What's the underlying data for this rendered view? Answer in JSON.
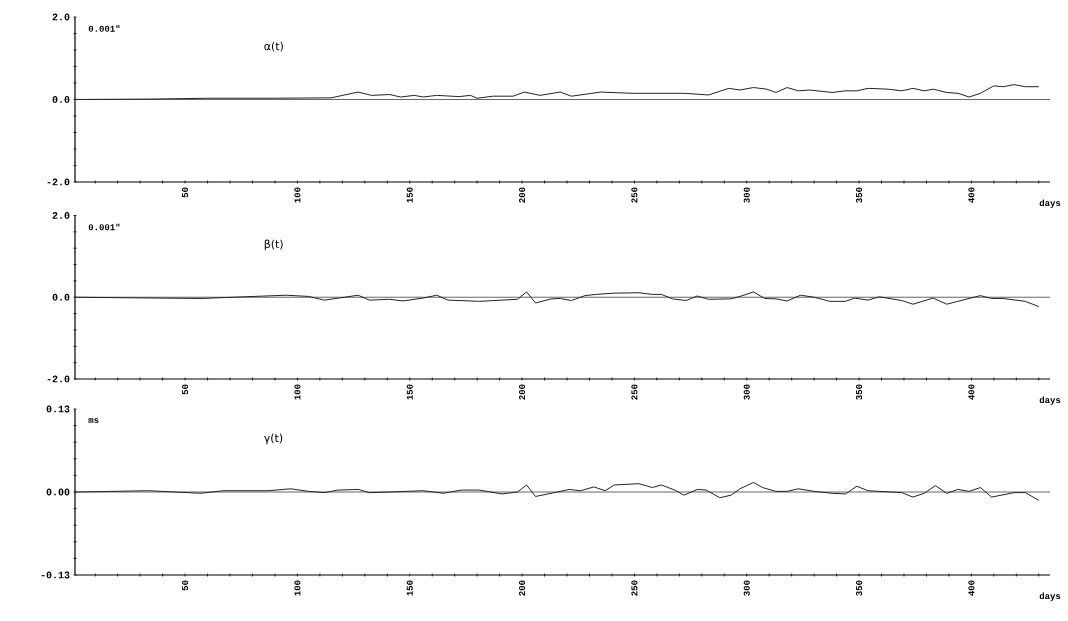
{
  "chart_data": [
    {
      "type": "line",
      "xlabel": "days",
      "ylabel": "0.001\"",
      "xlim": [
        1,
        435
      ],
      "ylim": [
        -2,
        2
      ],
      "xticks": [
        {
          "value": 10,
          "label": null
        },
        {
          "value": 20,
          "label": null
        },
        {
          "value": 30,
          "label": null
        },
        {
          "value": 40,
          "label": null
        },
        50,
        {
          "value": 60,
          "label": null
        },
        {
          "value": 70,
          "label": null
        },
        {
          "value": 80,
          "label": null
        },
        {
          "value": 90,
          "label": null
        },
        100,
        {
          "value": 110,
          "label": null
        },
        {
          "value": 120,
          "label": null
        },
        {
          "value": 130,
          "label": null
        },
        {
          "value": 140,
          "label": null
        },
        150,
        {
          "value": 160,
          "label": null
        },
        {
          "value": 170,
          "label": null
        },
        {
          "value": 180,
          "label": null
        },
        {
          "value": 190,
          "label": null
        },
        200,
        {
          "value": 210,
          "label": null
        },
        {
          "value": 220,
          "label": null
        },
        {
          "value": 230,
          "label": null
        },
        {
          "value": 240,
          "label": null
        },
        250,
        {
          "value": 260,
          "label": null
        },
        {
          "value": 270,
          "label": null
        },
        {
          "value": 280,
          "label": null
        },
        {
          "value": 290,
          "label": null
        },
        300,
        {
          "value": 310,
          "label": null
        },
        {
          "value": 320,
          "label": null
        },
        {
          "value": 330,
          "label": null
        },
        {
          "value": 340,
          "label": null
        },
        350,
        {
          "value": 360,
          "label": null
        },
        {
          "value": 370,
          "label": null
        },
        {
          "value": 380,
          "label": null
        },
        {
          "value": 390,
          "label": null
        },
        400,
        {
          "value": 410,
          "label": null
        },
        {
          "value": 420,
          "label": null
        },
        {
          "value": 430,
          "label": null
        }
      ],
      "yticks": [
        {
          "value": -2,
          "label": "-2.0"
        },
        {
          "value": -1.6,
          "label": null
        },
        {
          "value": -1.2,
          "label": null
        },
        {
          "value": -0.8,
          "label": null
        },
        {
          "value": -0.4,
          "label": null
        },
        {
          "value": 0,
          "label": "0.0"
        },
        {
          "value": 0.4,
          "label": null
        },
        {
          "value": 0.8,
          "label": null
        },
        {
          "value": 1.2,
          "label": null
        },
        {
          "value": 1.6,
          "label": null
        },
        {
          "value": 2,
          "label": "2.0"
        }
      ],
      "ref_lines": [
        {
          "axis": "y",
          "value": 0,
          "color": "#222222"
        }
      ],
      "series": [
        {
          "name": "α(t)",
          "color": "#222222",
          "x": [
            1,
            34,
            60,
            87,
            115,
            127,
            133,
            141,
            146,
            152,
            156,
            162,
            172,
            177,
            180,
            187,
            196,
            201,
            208,
            217,
            222,
            235,
            249,
            272,
            283,
            292,
            297,
            303,
            309,
            313,
            318,
            323,
            328,
            338,
            344,
            349,
            354,
            363,
            369,
            374,
            379,
            383,
            389,
            394,
            399,
            404,
            410,
            414,
            419,
            424,
            430
          ],
          "values": [
            0,
            0.01,
            0.03,
            0.03,
            0.04,
            0.18,
            0.1,
            0.12,
            0.06,
            0.1,
            0.06,
            0.1,
            0.07,
            0.1,
            0.03,
            0.08,
            0.08,
            0.18,
            0.1,
            0.18,
            0.08,
            0.18,
            0.15,
            0.15,
            0.11,
            0.27,
            0.23,
            0.29,
            0.25,
            0.17,
            0.29,
            0.21,
            0.23,
            0.17,
            0.21,
            0.21,
            0.27,
            0.25,
            0.21,
            0.27,
            0.21,
            0.25,
            0.17,
            0.15,
            0.06,
            0.15,
            0.33,
            0.31,
            0.36,
            0.31,
            0.31
          ]
        }
      ]
    },
    {
      "type": "line",
      "xlabel": "days",
      "ylabel": "0.001\"",
      "xlim": [
        1,
        435
      ],
      "ylim": [
        -2,
        2
      ],
      "xticks": [
        {
          "value": 10,
          "label": null
        },
        {
          "value": 20,
          "label": null
        },
        {
          "value": 30,
          "label": null
        },
        {
          "value": 40,
          "label": null
        },
        50,
        {
          "value": 60,
          "label": null
        },
        {
          "value": 70,
          "label": null
        },
        {
          "value": 80,
          "label": null
        },
        {
          "value": 90,
          "label": null
        },
        100,
        {
          "value": 110,
          "label": null
        },
        {
          "value": 120,
          "label": null
        },
        {
          "value": 130,
          "label": null
        },
        {
          "value": 140,
          "label": null
        },
        150,
        {
          "value": 160,
          "label": null
        },
        {
          "value": 170,
          "label": null
        },
        {
          "value": 180,
          "label": null
        },
        {
          "value": 190,
          "label": null
        },
        200,
        {
          "value": 210,
          "label": null
        },
        {
          "value": 220,
          "label": null
        },
        {
          "value": 230,
          "label": null
        },
        {
          "value": 240,
          "label": null
        },
        250,
        {
          "value": 260,
          "label": null
        },
        {
          "value": 270,
          "label": null
        },
        {
          "value": 280,
          "label": null
        },
        {
          "value": 290,
          "label": null
        },
        300,
        {
          "value": 310,
          "label": null
        },
        {
          "value": 320,
          "label": null
        },
        {
          "value": 330,
          "label": null
        },
        {
          "value": 340,
          "label": null
        },
        350,
        {
          "value": 360,
          "label": null
        },
        {
          "value": 370,
          "label": null
        },
        {
          "value": 380,
          "label": null
        },
        {
          "value": 390,
          "label": null
        },
        400,
        {
          "value": 410,
          "label": null
        },
        {
          "value": 420,
          "label": null
        },
        {
          "value": 430,
          "label": null
        }
      ],
      "yticks": [
        {
          "value": -2,
          "label": "-2.0"
        },
        {
          "value": -1.6,
          "label": null
        },
        {
          "value": -1.2,
          "label": null
        },
        {
          "value": -0.8,
          "label": null
        },
        {
          "value": -0.4,
          "label": null
        },
        {
          "value": 0,
          "label": "0.0"
        },
        {
          "value": 0.4,
          "label": null
        },
        {
          "value": 0.8,
          "label": null
        },
        {
          "value": 1.2,
          "label": null
        },
        {
          "value": 1.6,
          "label": null
        },
        {
          "value": 2,
          "label": "2.0"
        }
      ],
      "ref_lines": [
        {
          "axis": "y",
          "value": 0,
          "color": "#222222"
        }
      ],
      "series": [
        {
          "name": "β(t)",
          "color": "#222222",
          "x": [
            1,
            57,
            95,
            105,
            112,
            121,
            127,
            132,
            141,
            147,
            156,
            162,
            167,
            181,
            198,
            202,
            206,
            213,
            217,
            222,
            228,
            233,
            241,
            252,
            258,
            262,
            267,
            273,
            278,
            283,
            293,
            297,
            303,
            308,
            313,
            318,
            324,
            330,
            337,
            344,
            348,
            354,
            359,
            369,
            374,
            383,
            389,
            394,
            404,
            409,
            414,
            424,
            430
          ],
          "values": [
            0,
            -0.03,
            0.05,
            0.02,
            -0.07,
            0,
            0.05,
            -0.07,
            -0.05,
            -0.09,
            -0.02,
            0.05,
            -0.07,
            -0.1,
            -0.05,
            0.13,
            -0.14,
            -0.04,
            -0.03,
            -0.08,
            0.04,
            0.07,
            0.1,
            0.11,
            0.07,
            0.07,
            -0.04,
            -0.08,
            0.03,
            -0.05,
            -0.04,
            0.02,
            0.13,
            -0.03,
            -0.04,
            -0.09,
            0.05,
            0,
            -0.1,
            -0.1,
            -0.02,
            -0.07,
            0.01,
            -0.08,
            -0.17,
            -0.02,
            -0.17,
            -0.1,
            0.04,
            -0.03,
            -0.03,
            -0.1,
            -0.23
          ]
        }
      ]
    },
    {
      "type": "line",
      "xlabel": "days",
      "ylabel": "ms",
      "xlim": [
        1,
        435
      ],
      "ylim": [
        -0.13,
        0.13
      ],
      "xticks": [
        {
          "value": 10,
          "label": null
        },
        {
          "value": 20,
          "label": null
        },
        {
          "value": 30,
          "label": null
        },
        {
          "value": 40,
          "label": null
        },
        50,
        {
          "value": 60,
          "label": null
        },
        {
          "value": 70,
          "label": null
        },
        {
          "value": 80,
          "label": null
        },
        {
          "value": 90,
          "label": null
        },
        100,
        {
          "value": 110,
          "label": null
        },
        {
          "value": 120,
          "label": null
        },
        {
          "value": 130,
          "label": null
        },
        {
          "value": 140,
          "label": null
        },
        150,
        {
          "value": 160,
          "label": null
        },
        {
          "value": 170,
          "label": null
        },
        {
          "value": 180,
          "label": null
        },
        {
          "value": 190,
          "label": null
        },
        200,
        {
          "value": 210,
          "label": null
        },
        {
          "value": 220,
          "label": null
        },
        {
          "value": 230,
          "label": null
        },
        {
          "value": 240,
          "label": null
        },
        250,
        {
          "value": 260,
          "label": null
        },
        {
          "value": 270,
          "label": null
        },
        {
          "value": 280,
          "label": null
        },
        {
          "value": 290,
          "label": null
        },
        300,
        {
          "value": 310,
          "label": null
        },
        {
          "value": 320,
          "label": null
        },
        {
          "value": 330,
          "label": null
        },
        {
          "value": 340,
          "label": null
        },
        350,
        {
          "value": 360,
          "label": null
        },
        {
          "value": 370,
          "label": null
        },
        {
          "value": 380,
          "label": null
        },
        {
          "value": 390,
          "label": null
        },
        400,
        {
          "value": 410,
          "label": null
        },
        {
          "value": 420,
          "label": null
        },
        {
          "value": 430,
          "label": null
        }
      ],
      "yticks": [
        -0.13,
        {
          "value": -0.104,
          "label": null
        },
        {
          "value": -0.078,
          "label": null
        },
        {
          "value": -0.052,
          "label": null
        },
        {
          "value": -0.026,
          "label": null
        },
        {
          "value": 0,
          "label": "0.00"
        },
        {
          "value": 0.026,
          "label": null
        },
        {
          "value": 0.052,
          "label": null
        },
        {
          "value": 0.078,
          "label": null
        },
        {
          "value": 0.104,
          "label": null
        },
        0.13
      ],
      "ref_lines": [
        {
          "axis": "y",
          "value": 0,
          "color": "#222222"
        }
      ],
      "series": [
        {
          "name": "γ(t)",
          "color": "#222222",
          "x": [
            1,
            34,
            57,
            67,
            87,
            97,
            105,
            112,
            118,
            127,
            132,
            141,
            156,
            165,
            173,
            181,
            191,
            198,
            202,
            206,
            217,
            221,
            226,
            232,
            237,
            241,
            252,
            258,
            262,
            268,
            272,
            278,
            282,
            288,
            293,
            297,
            303,
            307,
            313,
            318,
            323,
            330,
            338,
            344,
            349,
            354,
            369,
            374,
            379,
            384,
            389,
            394,
            399,
            404,
            409,
            419,
            424,
            430
          ],
          "values": [
            0,
            0.002,
            -0.002,
            0.002,
            0.002,
            0.005,
            0.001,
            -0.001,
            0.003,
            0.004,
            -0.001,
            0,
            0.002,
            -0.002,
            0.003,
            0.003,
            -0.003,
            0,
            0.011,
            -0.007,
            0.001,
            0.004,
            0.002,
            0.008,
            0.002,
            0.011,
            0.013,
            0.007,
            0.011,
            0.003,
            -0.005,
            0.004,
            0.003,
            -0.009,
            -0.005,
            0.005,
            0.015,
            0.007,
            0.001,
            0.001,
            0.005,
            0.001,
            -0.002,
            -0.003,
            0.009,
            0.002,
            -0.001,
            -0.008,
            -0.002,
            0.01,
            -0.002,
            0.004,
            0.001,
            0.007,
            -0.008,
            -0.001,
            -0.001,
            -0.013
          ]
        }
      ]
    }
  ]
}
